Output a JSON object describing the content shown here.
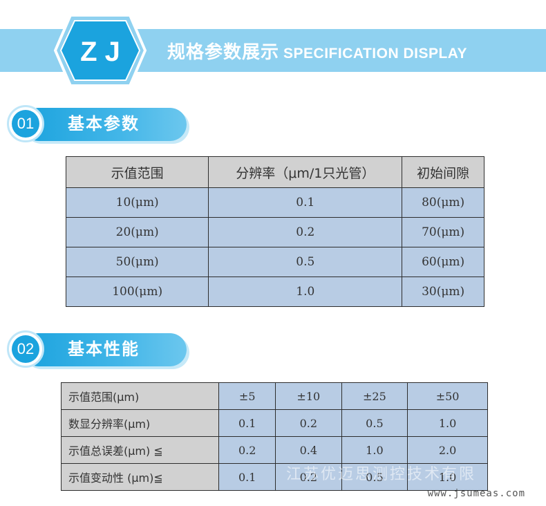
{
  "banner": {
    "logo_text": "Z J",
    "title_cn": "规格参数展示",
    "title_en": "SPECIFICATION DISPLAY"
  },
  "section1": {
    "number": "01",
    "label": "基本参数",
    "table": {
      "headers": [
        "示值范围",
        "分辨率（μm/1只光管）",
        "初始间隙"
      ],
      "rows": [
        [
          "10(μm)",
          "0.1",
          "80(μm)"
        ],
        [
          "20(μm)",
          "0.2",
          "70(μm)"
        ],
        [
          "50(μm)",
          "0.5",
          "60(μm)"
        ],
        [
          "100(μm)",
          "1.0",
          "30(μm)"
        ]
      ]
    }
  },
  "section2": {
    "number": "02",
    "label": "基本性能",
    "table": {
      "rows": [
        {
          "label": "示值范围(μm)",
          "values": [
            "±5",
            "±10",
            "±25",
            "±50"
          ]
        },
        {
          "label": "数显分辨率(μm)",
          "values": [
            "0.1",
            "0.2",
            "0.5",
            "1.0"
          ]
        },
        {
          "label": "示值总误差(μm) ≦",
          "values": [
            "0.2",
            "0.4",
            "1.0",
            "2.0"
          ]
        },
        {
          "label": "示值变动性 (μm)≦",
          "values": [
            "0.1",
            "0.2",
            "0.5",
            "1.0"
          ]
        }
      ]
    }
  },
  "footer": {
    "watermark": "江苏优迈思测控技术有限",
    "website": "www.jsumeas.com"
  },
  "colors": {
    "banner_bg": "#8fd1f0",
    "accent": "#1ba3de",
    "header_cell": "#d1d1d1",
    "value_cell": "#b8cce4"
  }
}
